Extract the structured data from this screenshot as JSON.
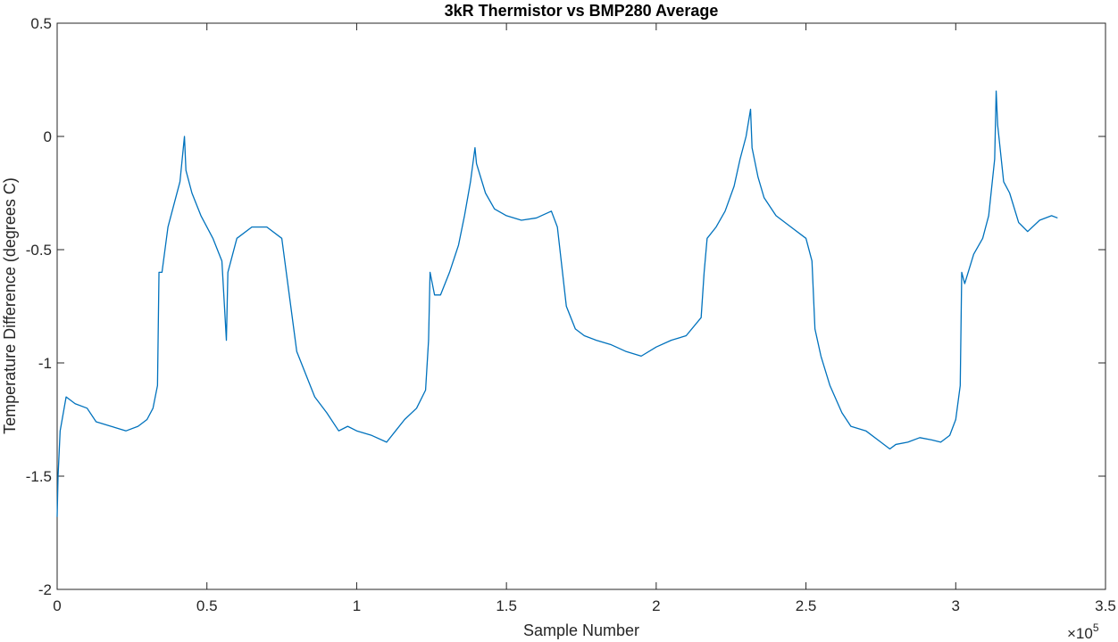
{
  "chart_data": {
    "type": "line",
    "title": "3kR Thermistor vs BMP280 Average",
    "xlabel": "Sample Number",
    "ylabel": "Temperature Difference (degrees C)",
    "x_exponent_label": "×10",
    "x_exponent_power": "5",
    "xlim": [
      0,
      350000
    ],
    "ylim": [
      -2,
      0.5
    ],
    "x_ticks": [
      0,
      50000,
      100000,
      150000,
      200000,
      250000,
      300000,
      350000
    ],
    "x_tick_labels": [
      "0",
      "0.5",
      "1",
      "1.5",
      "2",
      "2.5",
      "3",
      "3.5"
    ],
    "y_ticks": [
      0.5,
      0,
      -0.5,
      -1,
      -1.5,
      -2
    ],
    "y_tick_labels": [
      "0.5",
      "0",
      "-0.5",
      "-1",
      "-1.5",
      "-2"
    ],
    "grid": false,
    "line_color": "#0072BD",
    "series": [
      {
        "x": [
          0,
          300,
          1000,
          3000,
          6000,
          10000,
          13000,
          18000,
          23000,
          27000,
          30000,
          32000,
          33500,
          34000,
          35000,
          37000,
          39000,
          41000,
          42500,
          43000,
          45000,
          48000,
          52000,
          55000,
          56500,
          57000,
          60000,
          65000,
          70000,
          75000,
          78000,
          80000,
          83000,
          86000,
          90000,
          94000,
          97000,
          100000,
          105000,
          110000,
          113000,
          116000,
          120000,
          123000,
          124000,
          124500,
          126000,
          128000,
          131000,
          134000,
          136000,
          138000,
          139500,
          140000,
          143000,
          146000,
          150000,
          155000,
          160000,
          165000,
          167000,
          170000,
          173000,
          176000,
          180000,
          185000,
          190000,
          195000,
          200000,
          205000,
          210000,
          215000,
          216000,
          217000,
          220000,
          223000,
          226000,
          228000,
          230000,
          231500,
          232000,
          234000,
          236000,
          240000,
          245000,
          250000,
          252000,
          253000,
          255000,
          258000,
          262000,
          265000,
          270000,
          275000,
          278000,
          280000,
          284000,
          288000,
          292000,
          295000,
          298000,
          300000,
          301500,
          302000,
          303000,
          306000,
          309000,
          311000,
          313000,
          313500,
          314000,
          316000,
          318000,
          321000,
          324000,
          328000,
          332000,
          334000
        ],
        "y": [
          -1.68,
          -1.5,
          -1.3,
          -1.15,
          -1.18,
          -1.2,
          -1.26,
          -1.28,
          -1.3,
          -1.28,
          -1.25,
          -1.2,
          -1.1,
          -0.6,
          -0.6,
          -0.4,
          -0.3,
          -0.2,
          0.0,
          -0.15,
          -0.25,
          -0.35,
          -0.45,
          -0.55,
          -0.9,
          -0.6,
          -0.45,
          -0.4,
          -0.4,
          -0.45,
          -0.75,
          -0.95,
          -1.05,
          -1.15,
          -1.22,
          -1.3,
          -1.28,
          -1.3,
          -1.32,
          -1.35,
          -1.3,
          -1.25,
          -1.2,
          -1.12,
          -0.9,
          -0.6,
          -0.7,
          -0.7,
          -0.6,
          -0.48,
          -0.35,
          -0.2,
          -0.05,
          -0.12,
          -0.25,
          -0.32,
          -0.35,
          -0.37,
          -0.36,
          -0.33,
          -0.4,
          -0.75,
          -0.85,
          -0.88,
          -0.9,
          -0.92,
          -0.95,
          -0.97,
          -0.93,
          -0.9,
          -0.88,
          -0.8,
          -0.6,
          -0.45,
          -0.4,
          -0.33,
          -0.22,
          -0.1,
          0.0,
          0.12,
          -0.05,
          -0.18,
          -0.27,
          -0.35,
          -0.4,
          -0.45,
          -0.55,
          -0.85,
          -0.97,
          -1.1,
          -1.22,
          -1.28,
          -1.3,
          -1.35,
          -1.38,
          -1.36,
          -1.35,
          -1.33,
          -1.34,
          -1.35,
          -1.32,
          -1.25,
          -1.1,
          -0.6,
          -0.65,
          -0.52,
          -0.45,
          -0.35,
          -0.1,
          0.2,
          0.05,
          -0.2,
          -0.25,
          -0.38,
          -0.42,
          -0.37,
          -0.35,
          -0.36
        ]
      }
    ]
  }
}
